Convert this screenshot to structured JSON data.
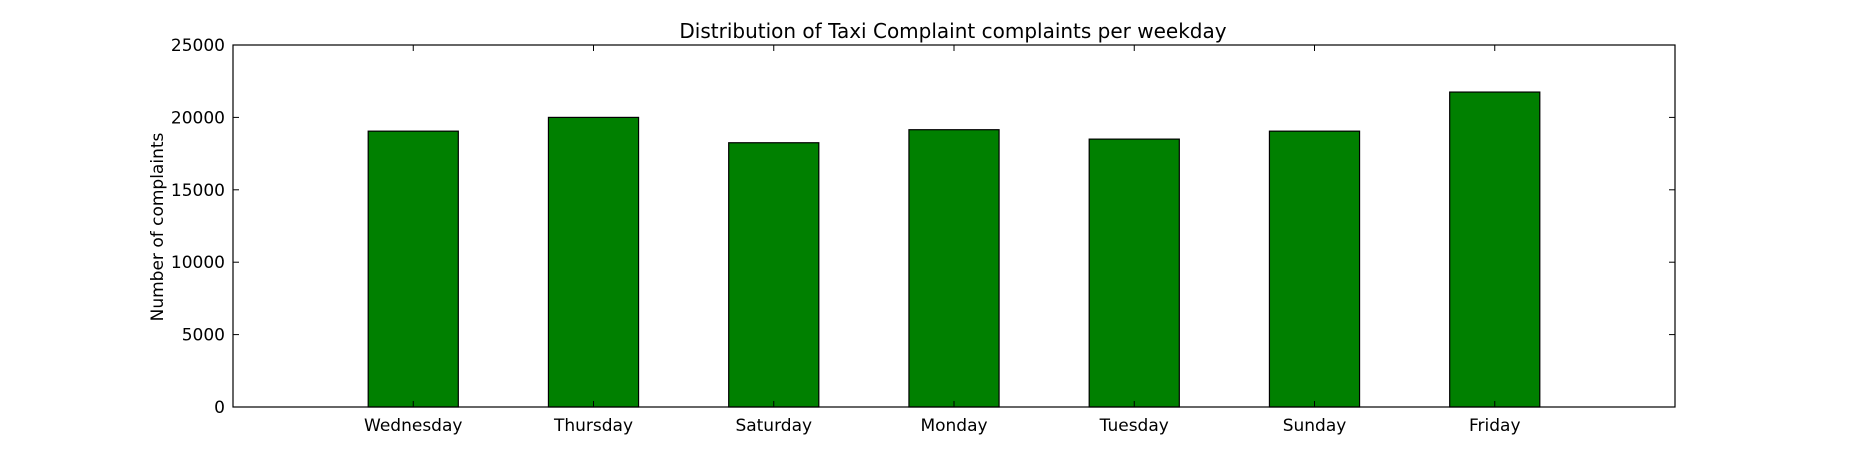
{
  "chart_data": {
    "type": "bar",
    "title": "Distribution of  Taxi Complaint complaints per weekday",
    "xlabel": "",
    "ylabel": "Number of complaints",
    "categories": [
      "Wednesday",
      "Thursday",
      "Saturday",
      "Monday",
      "Tuesday",
      "Sunday",
      "Friday"
    ],
    "values": [
      19050,
      20000,
      18250,
      19150,
      18500,
      19050,
      21750
    ],
    "ylim": [
      0,
      25000
    ],
    "yticks": [
      0,
      5000,
      10000,
      15000,
      20000,
      25000
    ],
    "bar_color": "#008000",
    "edge_color": "#000000",
    "grid": false,
    "legend": "none"
  }
}
